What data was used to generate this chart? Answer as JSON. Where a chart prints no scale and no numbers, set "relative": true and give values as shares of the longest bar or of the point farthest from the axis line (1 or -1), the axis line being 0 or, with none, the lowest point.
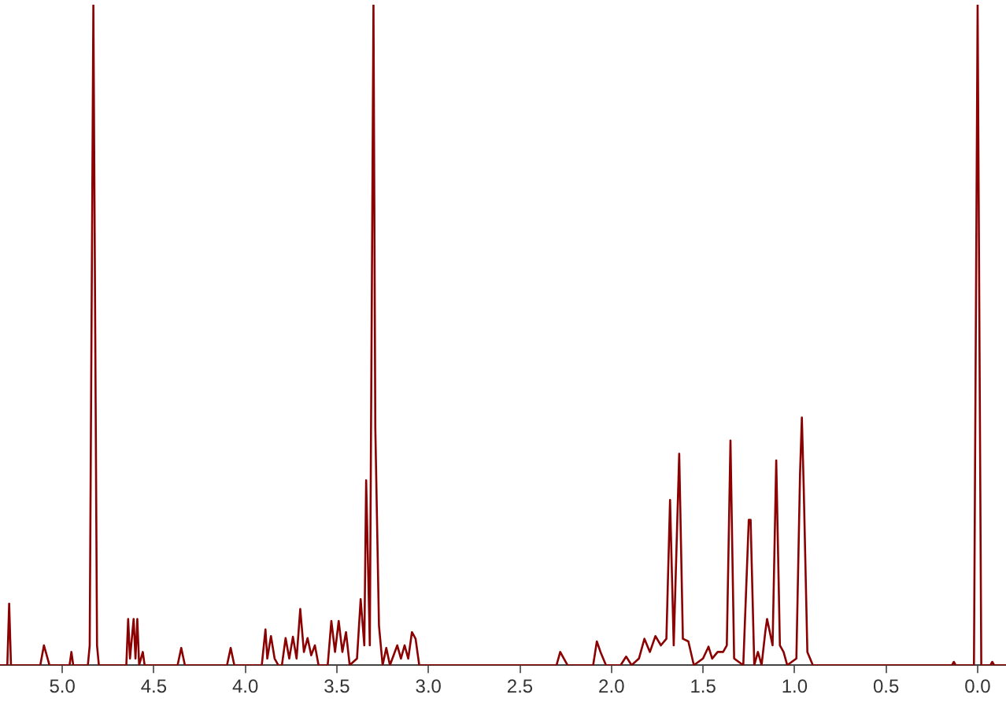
{
  "chart_data": {
    "type": "line",
    "relative": true,
    "grid": false,
    "legend": false,
    "tick_labels": "x",
    "marker": "none",
    "line_style": "solid",
    "xlim": [
      5.34,
      -0.155
    ],
    "xticks": [
      {
        "value": 5,
        "label": "5.0"
      },
      {
        "value": 4.5,
        "label": "4.5"
      },
      {
        "value": 4,
        "label": "4.0"
      },
      {
        "value": 3.5,
        "label": "3.5"
      },
      {
        "value": 3,
        "label": "3.0"
      },
      {
        "value": 2.5,
        "label": "2.5"
      },
      {
        "value": 2,
        "label": "2.0"
      },
      {
        "value": 1.5,
        "label": "1.5"
      },
      {
        "value": 1,
        "label": "1.0"
      },
      {
        "value": 0.5,
        "label": "0.5"
      },
      {
        "value": 0,
        "label": "0.0"
      }
    ],
    "series": [
      {
        "color": "#8b0000",
        "x": [
          5.34,
          5.3,
          5.29,
          5.28,
          5.12,
          5.1,
          5.09,
          5.07,
          4.96,
          4.95,
          4.94,
          4.86,
          4.85,
          4.83,
          4.81,
          4.8,
          4.65,
          4.64,
          4.63,
          4.61,
          4.6,
          4.59,
          4.58,
          4.56,
          4.55,
          4.37,
          4.35,
          4.33,
          4.1,
          4.08,
          4.06,
          3.91,
          3.89,
          3.88,
          3.86,
          3.84,
          3.82,
          3.8,
          3.78,
          3.76,
          3.74,
          3.72,
          3.7,
          3.68,
          3.66,
          3.64,
          3.62,
          3.6,
          3.55,
          3.53,
          3.51,
          3.49,
          3.47,
          3.45,
          3.43,
          3.39,
          3.37,
          3.35,
          3.34,
          3.32,
          3.3,
          3.29,
          3.27,
          3.25,
          3.23,
          3.21,
          3.17,
          3.15,
          3.13,
          3.11,
          3.09,
          3.07,
          3.05,
          2.3,
          2.28,
          2.26,
          2.24,
          2.1,
          2.08,
          2.06,
          2.03,
          1.95,
          1.92,
          1.89,
          1.85,
          1.82,
          1.79,
          1.76,
          1.73,
          1.7,
          1.68,
          1.66,
          1.63,
          1.61,
          1.58,
          1.55,
          1.5,
          1.47,
          1.45,
          1.42,
          1.39,
          1.37,
          1.35,
          1.33,
          1.28,
          1.25,
          1.24,
          1.22,
          1.2,
          1.18,
          1.16,
          1.15,
          1.12,
          1.1,
          1.08,
          1.06,
          1.04,
          0.99,
          0.97,
          0.96,
          0.95,
          0.93,
          0.9,
          0.14,
          0.13,
          0.12,
          0.02,
          0,
          -0.02,
          -0.07,
          -0.08,
          -0.09,
          -0.155
        ],
        "values": [
          0,
          0,
          0.093,
          0,
          0,
          0.03,
          0.02,
          0,
          0,
          0.02,
          0,
          0,
          0.03,
          1,
          0.03,
          0,
          0,
          0.07,
          0.01,
          0.07,
          0.01,
          0.07,
          0,
          0.02,
          0,
          0,
          0.026,
          0,
          0,
          0.026,
          0,
          0,
          0.054,
          0.01,
          0.044,
          0.01,
          0,
          0,
          0.041,
          0.01,
          0.043,
          0.01,
          0.085,
          0.02,
          0.041,
          0.015,
          0.03,
          0,
          0,
          0.067,
          0.02,
          0.067,
          0.02,
          0.05,
          0,
          0.01,
          0.1,
          0.03,
          0.28,
          0.03,
          1,
          0.36,
          0.06,
          0,
          0.026,
          0,
          0.03,
          0.01,
          0.03,
          0.01,
          0.05,
          0.04,
          0,
          0,
          0.02,
          0.01,
          0,
          0,
          0.036,
          0.02,
          0,
          0,
          0.013,
          0,
          0.01,
          0.04,
          0.02,
          0.044,
          0.03,
          0.04,
          0.25,
          0.03,
          0.32,
          0.04,
          0.036,
          0,
          0.01,
          0.028,
          0.01,
          0.02,
          0.02,
          0.03,
          0.34,
          0.01,
          0,
          0.22,
          0.22,
          0,
          0.02,
          0,
          0.05,
          0.07,
          0.03,
          0.31,
          0.03,
          0.02,
          0,
          0.01,
          0.29,
          0.375,
          0.27,
          0.02,
          0,
          0,
          0.005,
          0,
          0,
          1,
          0,
          0,
          0.005,
          0,
          0
        ]
      }
    ]
  }
}
